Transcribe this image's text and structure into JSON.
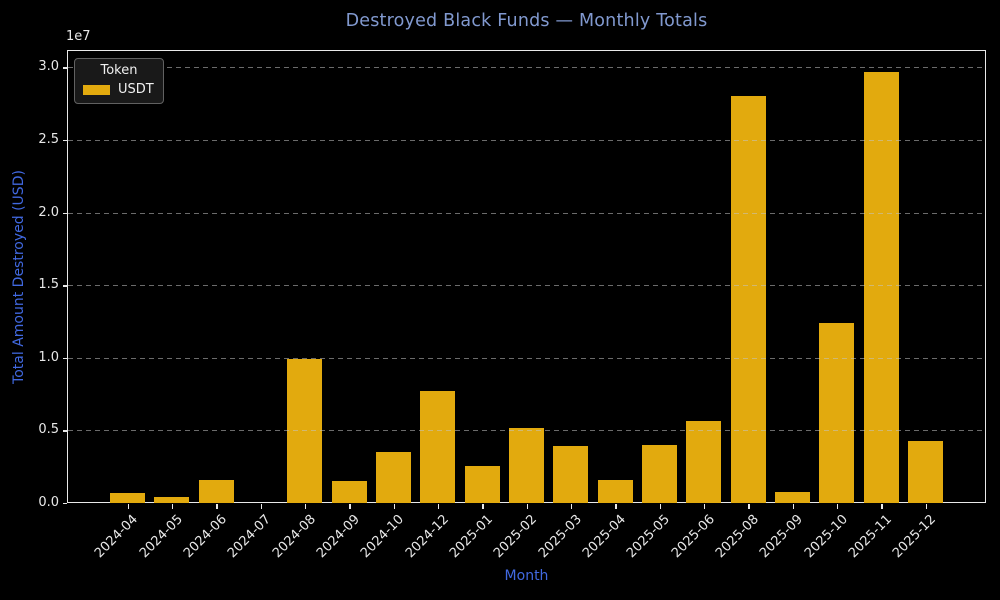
{
  "chart": {
    "title": "Destroyed Black Funds — Monthly Totals",
    "offset_text": "1e7",
    "legend": {
      "title": "Token",
      "entries": [
        {
          "label": "USDT",
          "color": "#e2aa0e"
        }
      ]
    }
  },
  "chart_data": {
    "type": "bar",
    "title": "Destroyed Black Funds — Monthly Totals",
    "xlabel": "Month",
    "ylabel": "Total Amount Destroyed (USD)",
    "y_offset_multiplier": "1e7",
    "categories": [
      "2024-04",
      "2024-05",
      "2024-06",
      "2024-07",
      "2024-08",
      "2024-09",
      "2024-10",
      "2024-12",
      "2025-01",
      "2025-02",
      "2025-03",
      "2025-04",
      "2025-05",
      "2025-06",
      "2025-08",
      "2025-09",
      "2025-10",
      "2025-11",
      "2025-12"
    ],
    "series": [
      {
        "name": "USDT",
        "color": "#e2aa0e",
        "values": [
          700000,
          400000,
          1600000,
          0,
          9900000,
          1500000,
          3500000,
          7700000,
          2550000,
          5200000,
          3900000,
          1550000,
          4000000,
          5650000,
          28000000,
          750000,
          12400000,
          29700000,
          4300000
        ]
      }
    ],
    "ylim": [
      0,
      31200000
    ],
    "yticks": [
      0,
      5000000,
      10000000,
      15000000,
      20000000,
      25000000,
      30000000
    ],
    "ytick_labels": [
      "0.0",
      "0.5",
      "1.0",
      "1.5",
      "2.0",
      "2.5",
      "3.0"
    ],
    "grid": "horizontal-dashed",
    "legend_position": "upper-left",
    "background": "#000000"
  },
  "colors": {
    "background": "#000000",
    "bar": "#e2aa0e",
    "title": "#8199cf",
    "axis_label": "#4169e1",
    "tick_label": "#e8e8e8"
  }
}
